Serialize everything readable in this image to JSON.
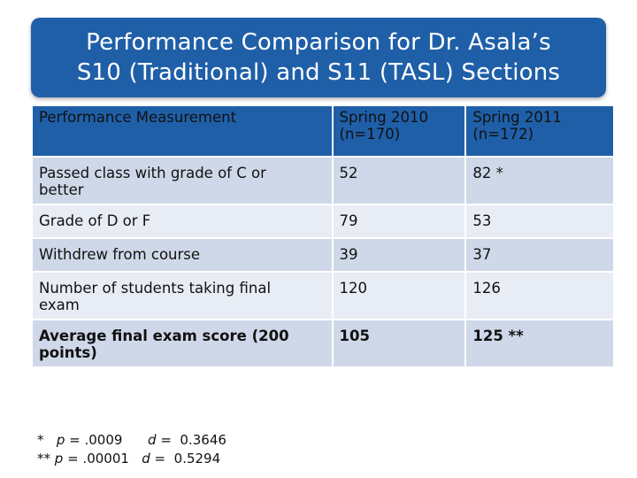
{
  "title": {
    "line1": "Performance Comparison for Dr. Asala’s",
    "line2": "S10 (Traditional) and S11 (TASL) Sections"
  },
  "table": {
    "headers": [
      {
        "line1": "Performance Measurement",
        "line2": ""
      },
      {
        "line1": "Spring 2010",
        "line2": "(n=170)"
      },
      {
        "line1": "Spring 2011",
        "line2": "(n=172)"
      }
    ],
    "rows": [
      {
        "label_line1": "Passed class with grade of C or",
        "label_line2": "better",
        "s2010": "52",
        "s2011": "82 *"
      },
      {
        "label_line1": "Grade of D or F",
        "label_line2": "",
        "s2010": "79",
        "s2011": "53"
      },
      {
        "label_line1": "Withdrew from course",
        "label_line2": "",
        "s2010": "39",
        "s2011": "37"
      },
      {
        "label_line1": "Number of students taking final",
        "label_line2": "exam",
        "s2010": "120",
        "s2011": "126"
      },
      {
        "label_line1": "Average final exam score (200",
        "label_line2": "points)",
        "s2010": "105",
        "s2011": "125 **"
      }
    ]
  },
  "footnotes": {
    "f1_mark": "*",
    "f1_p_label": "p",
    "f1_p_value": "= .0009",
    "f1_d_label": "d",
    "f1_d_value": "=  0.3646",
    "f2_mark": "**",
    "f2_p_label": "p",
    "f2_p_value": "= .00001",
    "f2_d_label": "d",
    "f2_d_value": "=  0.5294"
  },
  "colors": {
    "header_blue": "#1f5fa8",
    "row_dark": "#cfd8e8",
    "row_light": "#e8edf5"
  }
}
